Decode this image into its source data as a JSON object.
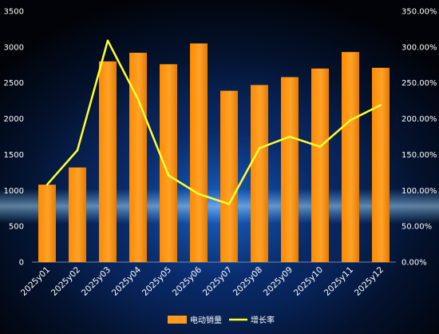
{
  "colors": {
    "bar": "#ff9a1a",
    "line": "#ffff33",
    "background": "#02050f",
    "glow": "#2f8dff",
    "text": "#ffffff"
  },
  "chart_data": {
    "type": "bar",
    "categories": [
      "2025y01",
      "2025y02",
      "2025y03",
      "2025y04",
      "2025y05",
      "2025y06",
      "2025y07",
      "2025y08",
      "2025y09",
      "2025y10",
      "2025y11",
      "2025y12"
    ],
    "series": [
      {
        "name": "电动销量",
        "type": "bar",
        "axis": "left",
        "values": [
          1080,
          1320,
          2800,
          2920,
          2760,
          3050,
          2390,
          2470,
          2580,
          2700,
          2930,
          2710
        ]
      },
      {
        "name": "增长率",
        "type": "line",
        "axis": "right",
        "values": [
          1.08,
          1.56,
          3.09,
          2.27,
          1.21,
          0.95,
          0.81,
          1.59,
          1.75,
          1.61,
          1.98,
          2.19
        ]
      }
    ],
    "y_left": {
      "ticks": [
        "0",
        "500",
        "1000",
        "1500",
        "2000",
        "2500",
        "3000",
        "3500"
      ],
      "ylim": [
        0,
        3500
      ]
    },
    "y_right": {
      "ticks": [
        "0.00%",
        "50.00%",
        "100.00%",
        "150.00%",
        "200.00%",
        "250.00%",
        "300.00%",
        "350.00%"
      ],
      "ylim": [
        0,
        3.5
      ]
    },
    "legend": {
      "placement": "bottom-center",
      "entries": [
        "电动销量",
        "增长率"
      ]
    },
    "grid": false
  }
}
